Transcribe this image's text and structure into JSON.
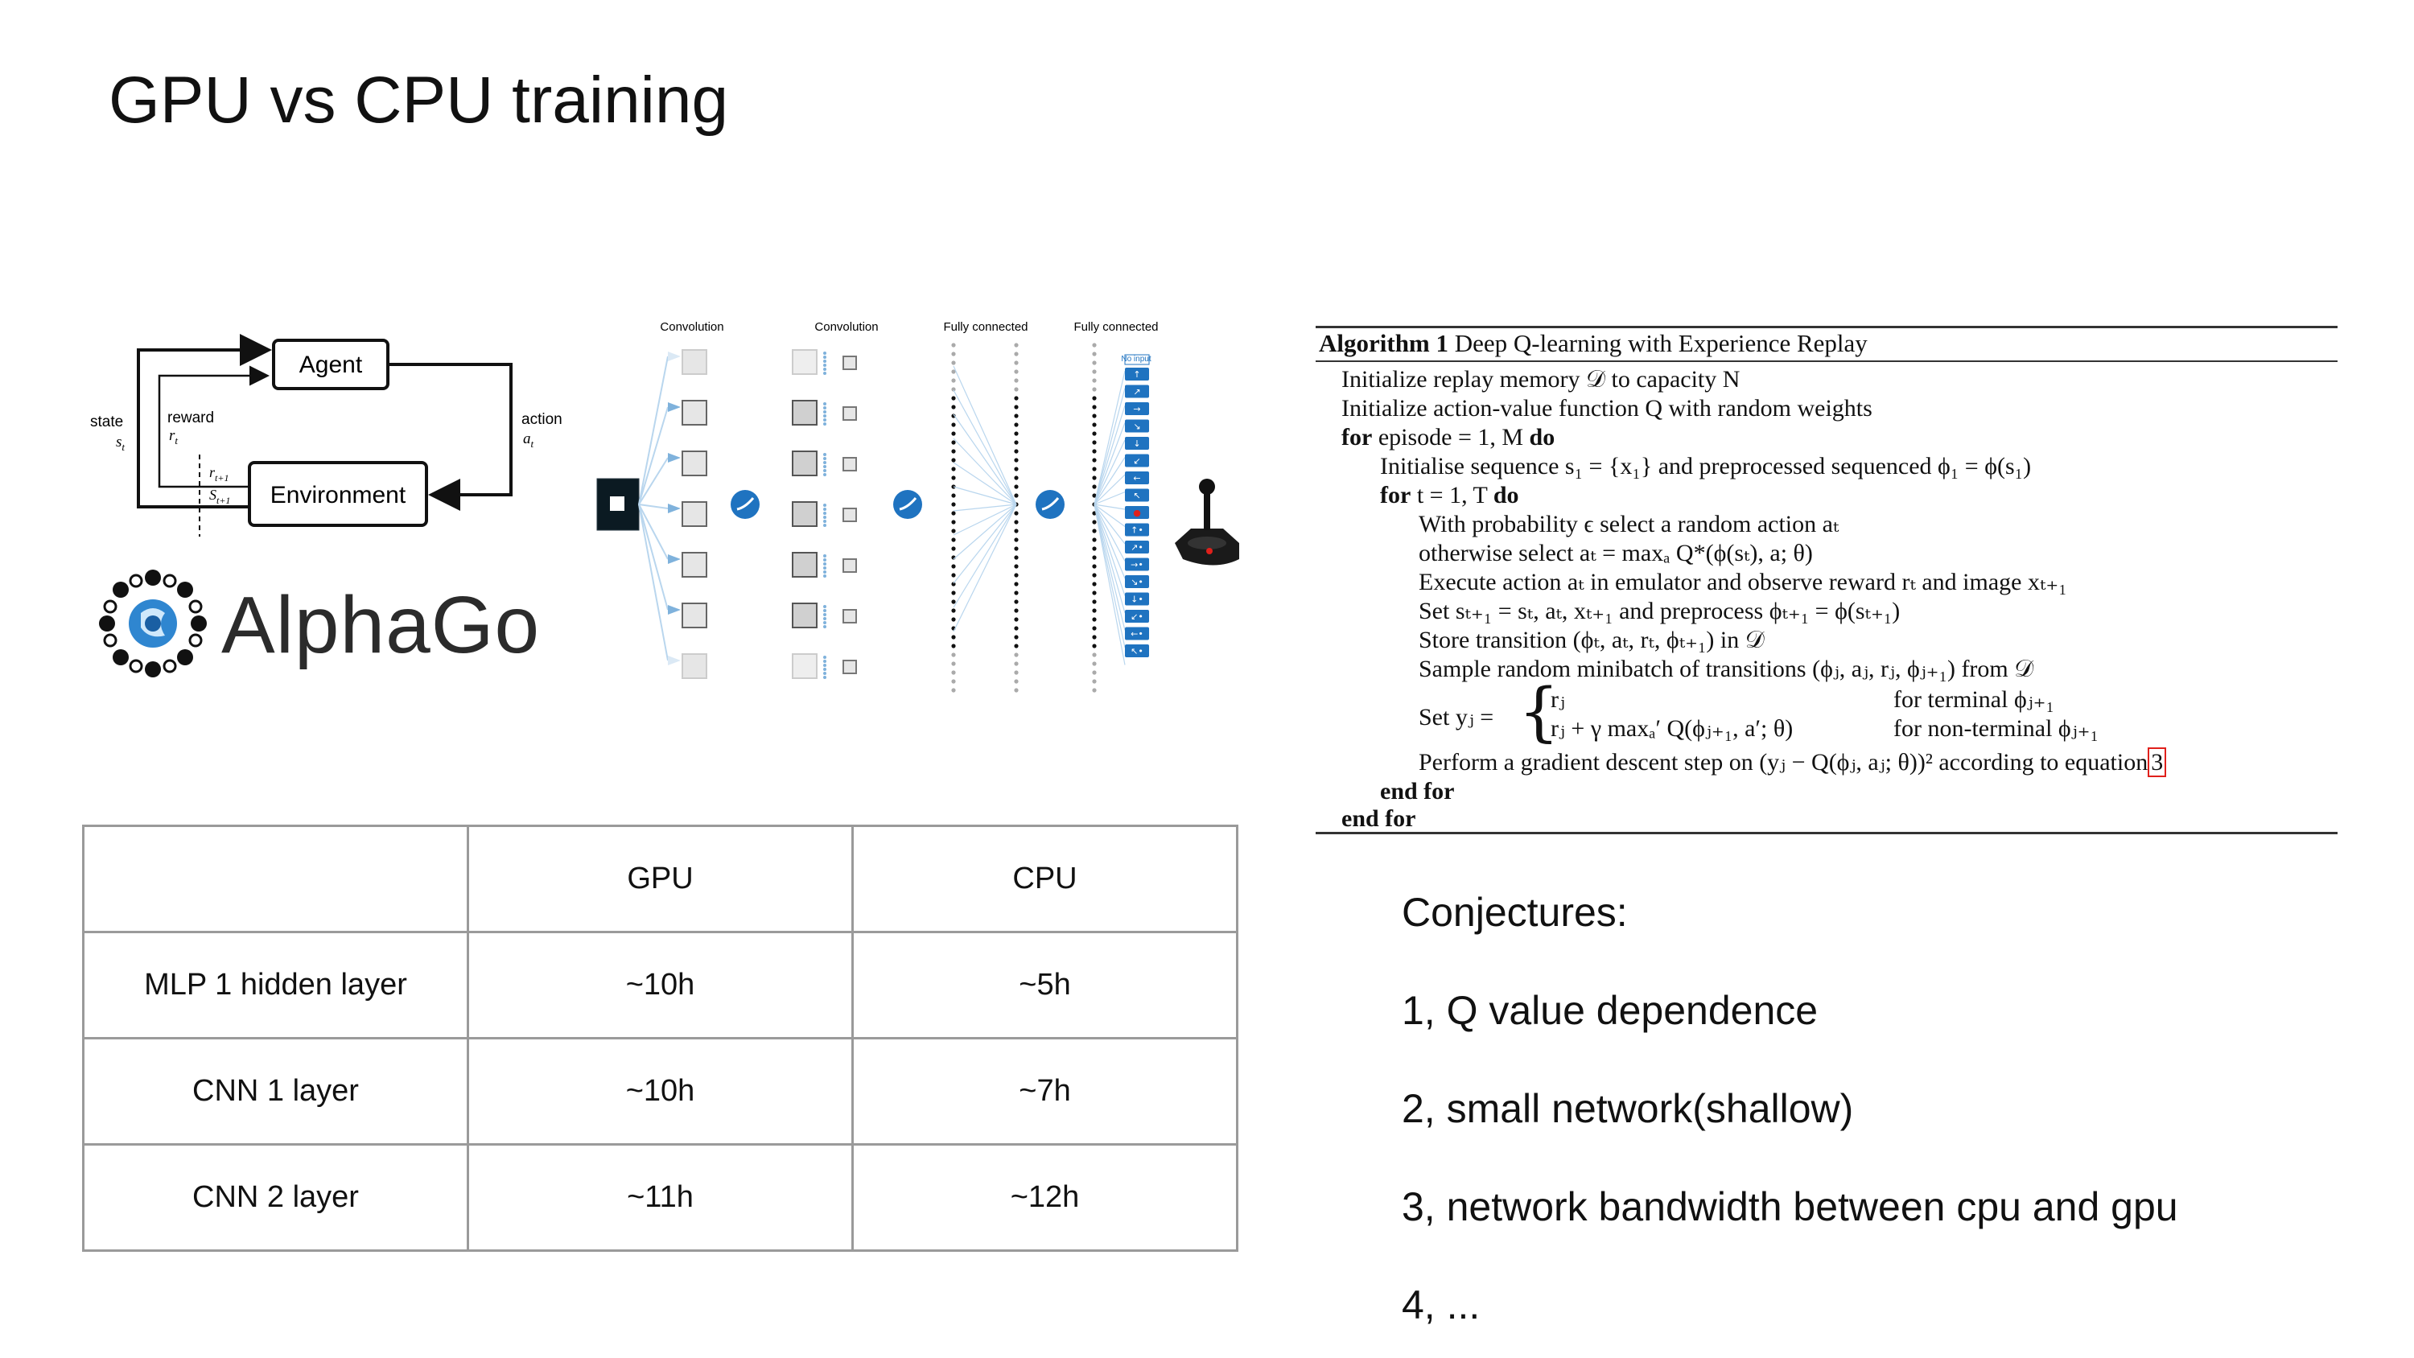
{
  "slide": {
    "title": "GPU vs CPU training"
  },
  "rl_diagram": {
    "agent_label": "Agent",
    "environment_label": "Environment",
    "state_label": "state",
    "state_symbol": "s",
    "state_sub": "t",
    "reward_label": "reward",
    "reward_symbol": "r",
    "reward_sub": "t",
    "action_label": "action",
    "action_symbol": "a",
    "action_sub": "t",
    "next_reward_symbol": "r",
    "next_reward_sub": "t+1",
    "next_state_symbol": "S",
    "next_state_sub": "t+1"
  },
  "logo": {
    "text": "AlphaGo"
  },
  "network": {
    "layer_labels": [
      "Convolution",
      "Convolution",
      "Fully connected",
      "Fully connected"
    ],
    "no_input_label": "No input",
    "joystick_icon": "joystick-icon"
  },
  "algorithm": {
    "heading_bold": "Algorithm 1",
    "heading_text": "Deep Q-learning with Experience Replay",
    "lines": [
      "Initialize replay memory 𝒟 to capacity N",
      "Initialize action-value function Q with random weights",
      "episode = 1, M",
      "Initialise sequence s₁ = {x₁} and preprocessed sequenced ϕ₁ = ϕ(s₁)",
      "t = 1, T",
      "With probability ϵ select a random action aₜ",
      "otherwise select aₜ = maxₐ Q*(ϕ(sₜ), a; θ)",
      "Execute action aₜ in emulator and observe reward rₜ and image xₜ₊₁",
      "Set sₜ₊₁ = sₜ, aₜ, xₜ₊₁ and preprocess ϕₜ₊₁ = ϕ(sₜ₊₁)",
      "Store transition (ϕₜ, aₜ, rₜ, ϕₜ₊₁) in 𝒟",
      "Sample random minibatch of transitions (ϕⱼ, aⱼ, rⱼ, ϕⱼ₊₁) from 𝒟",
      "Set yⱼ =",
      "rⱼ",
      "rⱼ + γ maxₐ′ Q(ϕⱼ₊₁, a′; θ)",
      "for terminal ϕⱼ₊₁",
      "for non-terminal ϕⱼ₊₁",
      "Perform a gradient descent step on (yⱼ − Q(ϕⱼ, aⱼ; θ))² according to equation",
      "3"
    ],
    "kw_for": "for",
    "kw_do": "do",
    "kw_end_for": "end for"
  },
  "table": {
    "header": [
      "",
      "GPU",
      "CPU"
    ],
    "rows": [
      [
        "MLP 1 hidden layer",
        "~10h",
        "~5h"
      ],
      [
        "CNN 1 layer",
        "~10h",
        "~7h"
      ],
      [
        "CNN 2 layer",
        "~11h",
        "~12h"
      ]
    ]
  },
  "conjectures": {
    "title": "Conjectures:",
    "items": [
      "1, Q value dependence",
      "2, small network(shallow)",
      "3, network bandwidth between cpu and gpu",
      "4, ..."
    ]
  },
  "colors": {
    "accent_blue": "#2f86d0",
    "box_blue": "#1f73c0",
    "eq_ref_red": "#e0201b",
    "table_border": "#9a9a9a"
  }
}
